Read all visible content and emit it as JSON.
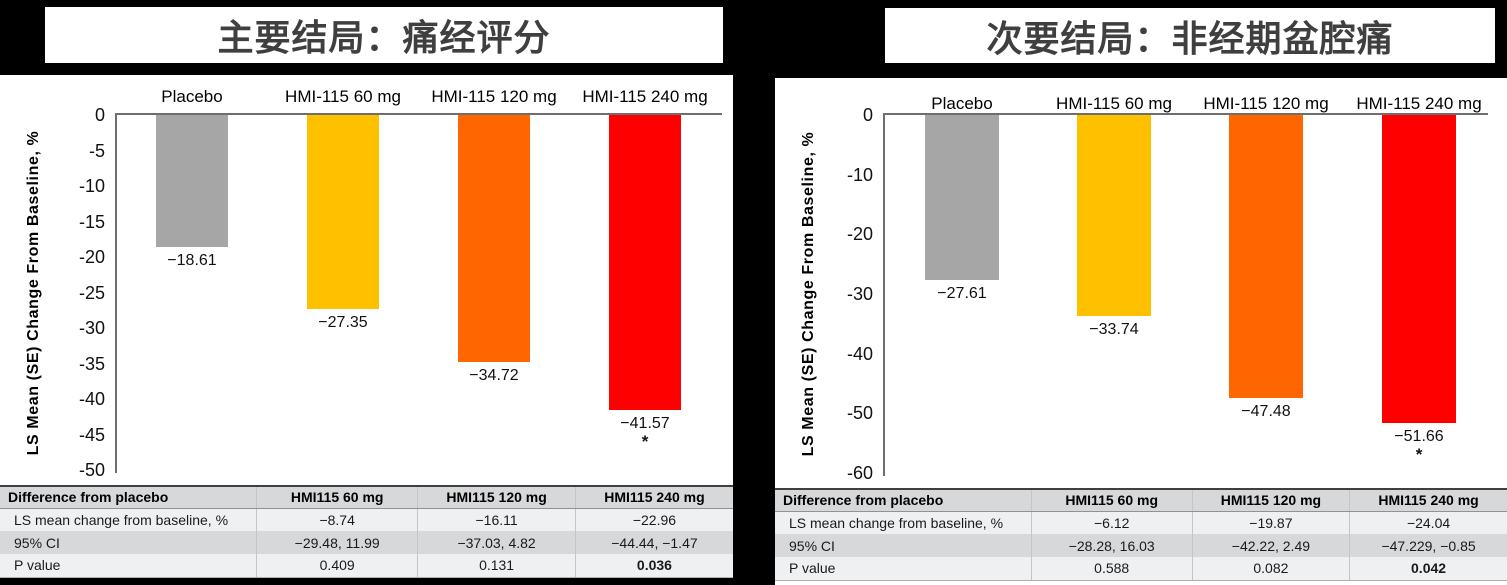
{
  "titles": {
    "left": "主要结局：痛经评分",
    "right": "次要结局：非经期盆腔痛"
  },
  "chart_data": [
    {
      "type": "bar",
      "title": "主要结局：痛经评分",
      "categories": [
        "Placebo",
        "HMI-115 60 mg",
        "HMI-115 120 mg",
        "HMI-115 240 mg"
      ],
      "values": [
        -18.61,
        -27.35,
        -34.72,
        -41.57
      ],
      "bar_labels": [
        "−18.61",
        "−27.35",
        "−34.72",
        "−41.57"
      ],
      "significance": [
        "",
        "",
        "",
        "*"
      ],
      "colors": [
        "#A6A6A6",
        "#FFC000",
        "#FF6600",
        "#FF0000"
      ],
      "xlabel": "",
      "ylabel": "LS Mean (SE) Change From Baseline, %",
      "ylim": [
        -50,
        0
      ],
      "ytick_step": 5,
      "grid": false,
      "legend": "none"
    },
    {
      "type": "bar",
      "title": "次要结局：非经期盆腔痛",
      "categories": [
        "Placebo",
        "HMI-115 60 mg",
        "HMI-115 120 mg",
        "HMI-115 240 mg"
      ],
      "values": [
        -27.61,
        -33.74,
        -47.48,
        -51.66
      ],
      "bar_labels": [
        "−27.61",
        "−33.74",
        "−47.48",
        "−51.66"
      ],
      "significance": [
        "",
        "",
        "",
        "*"
      ],
      "colors": [
        "#A6A6A6",
        "#FFC000",
        "#FF6600",
        "#FF0000"
      ],
      "xlabel": "",
      "ylabel": "LS Mean (SE) Change From Baseline, %",
      "ylim": [
        -60,
        0
      ],
      "ytick_step": 10,
      "grid": false,
      "legend": "none"
    }
  ],
  "tables": [
    {
      "header": [
        "Difference from placebo",
        "HMI115 60 mg",
        "HMI115 120 mg",
        "HMI115 240 mg"
      ],
      "rows": [
        [
          "LS mean change from baseline, %",
          "−8.74",
          "−16.11",
          "−22.96"
        ],
        [
          "95% CI",
          "−29.48, 11.99",
          "−37.03, 4.82",
          "−44.44, −1.47"
        ],
        [
          "P value",
          "0.409",
          "0.131",
          "0.036"
        ]
      ]
    },
    {
      "header": [
        "Difference from placebo",
        "HMI115 60 mg",
        "HMI115 120 mg",
        "HMI115 240 mg"
      ],
      "rows": [
        [
          "LS mean change from baseline, %",
          "−6.12",
          "−19.87",
          "−24.04"
        ],
        [
          "95% CI",
          "−28.28, 16.03",
          "−42.22, 2.49",
          "−47.229, −0.85"
        ],
        [
          "P value",
          "0.588",
          "0.082",
          "0.042"
        ]
      ]
    }
  ]
}
